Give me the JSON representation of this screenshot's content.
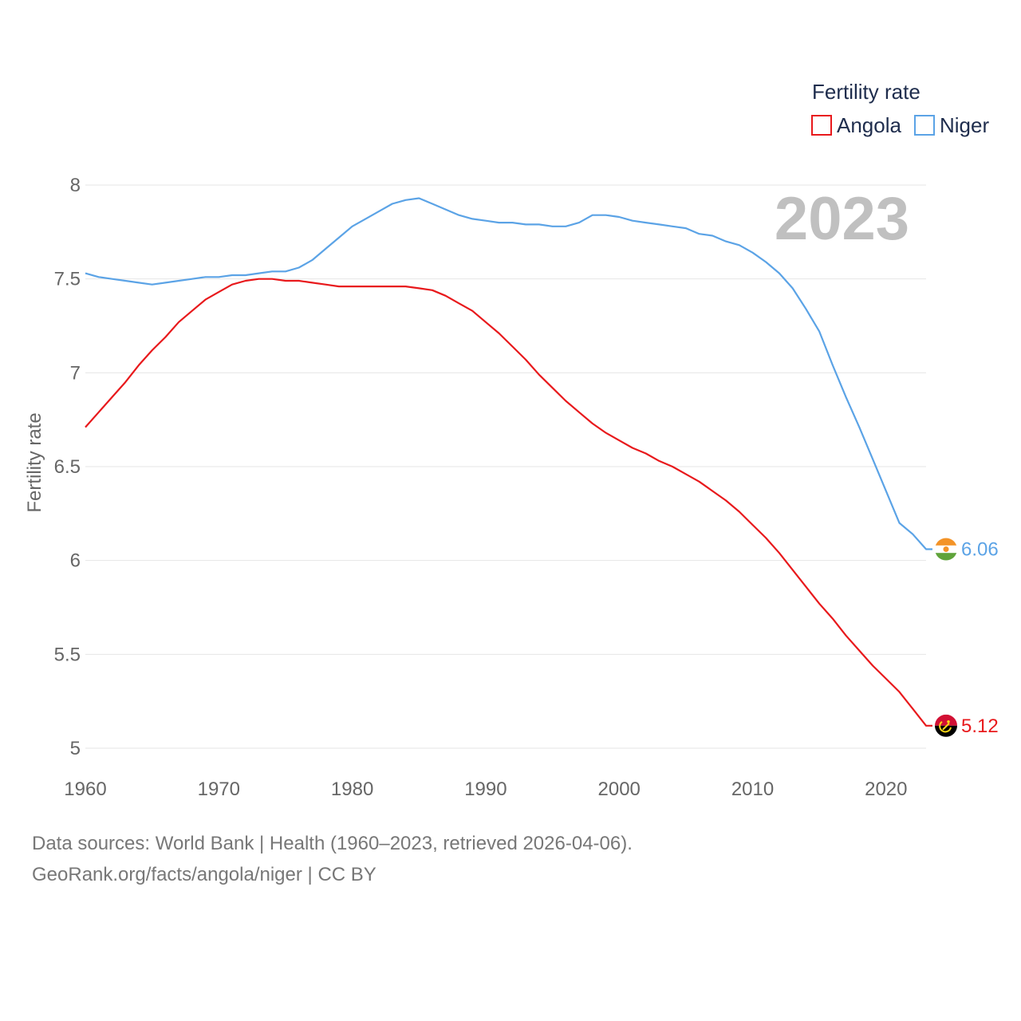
{
  "chart_data": {
    "type": "line",
    "title": "",
    "legend_title": "Fertility rate",
    "legend_position": "top-right",
    "ylabel": "Fertility rate",
    "xlabel": "",
    "xlim": [
      1960,
      2023
    ],
    "ylim": [
      5,
      8
    ],
    "x_ticks": [
      1960,
      1970,
      1980,
      1990,
      2000,
      2010,
      2020
    ],
    "y_ticks": [
      {
        "value": 5,
        "label": "5"
      },
      {
        "value": 5.5,
        "label": "5.5"
      },
      {
        "value": 6,
        "label": "6"
      },
      {
        "value": 6.5,
        "label": "6.5"
      },
      {
        "value": 7,
        "label": "7"
      },
      {
        "value": 7.5,
        "label": "7.5"
      },
      {
        "value": 8,
        "label": "8"
      }
    ],
    "current_year": "2023",
    "x": [
      1960,
      1961,
      1962,
      1963,
      1964,
      1965,
      1966,
      1967,
      1968,
      1969,
      1970,
      1971,
      1972,
      1973,
      1974,
      1975,
      1976,
      1977,
      1978,
      1979,
      1980,
      1981,
      1982,
      1983,
      1984,
      1985,
      1986,
      1987,
      1988,
      1989,
      1990,
      1991,
      1992,
      1993,
      1994,
      1995,
      1996,
      1997,
      1998,
      1999,
      2000,
      2001,
      2002,
      2003,
      2004,
      2005,
      2006,
      2007,
      2008,
      2009,
      2010,
      2011,
      2012,
      2013,
      2014,
      2015,
      2016,
      2017,
      2018,
      2019,
      2020,
      2021,
      2022,
      2023
    ],
    "series": [
      {
        "name": "Angola",
        "color": "#e8191c",
        "end_label": "5.12",
        "flag": "angola-flag",
        "values": [
          6.71,
          6.79,
          6.87,
          6.95,
          7.04,
          7.12,
          7.19,
          7.27,
          7.33,
          7.39,
          7.43,
          7.47,
          7.49,
          7.5,
          7.5,
          7.49,
          7.49,
          7.48,
          7.47,
          7.46,
          7.46,
          7.46,
          7.46,
          7.46,
          7.46,
          7.45,
          7.44,
          7.41,
          7.37,
          7.33,
          7.27,
          7.21,
          7.14,
          7.07,
          6.99,
          6.92,
          6.85,
          6.79,
          6.73,
          6.68,
          6.64,
          6.6,
          6.57,
          6.53,
          6.5,
          6.46,
          6.42,
          6.37,
          6.32,
          6.26,
          6.19,
          6.12,
          6.04,
          5.95,
          5.86,
          5.77,
          5.69,
          5.6,
          5.52,
          5.44,
          5.37,
          5.3,
          5.21,
          5.12
        ]
      },
      {
        "name": "Niger",
        "color": "#5ba3e6",
        "end_label": "6.06",
        "flag": "niger-flag",
        "values": [
          7.53,
          7.51,
          7.5,
          7.49,
          7.48,
          7.47,
          7.48,
          7.49,
          7.5,
          7.51,
          7.51,
          7.52,
          7.52,
          7.53,
          7.54,
          7.54,
          7.56,
          7.6,
          7.66,
          7.72,
          7.78,
          7.82,
          7.86,
          7.9,
          7.92,
          7.93,
          7.9,
          7.87,
          7.84,
          7.82,
          7.81,
          7.8,
          7.8,
          7.79,
          7.79,
          7.78,
          7.78,
          7.8,
          7.84,
          7.84,
          7.83,
          7.81,
          7.8,
          7.79,
          7.78,
          7.77,
          7.74,
          7.73,
          7.7,
          7.68,
          7.64,
          7.59,
          7.53,
          7.45,
          7.34,
          7.22,
          7.04,
          6.87,
          6.71,
          6.54,
          6.37,
          6.2,
          6.14,
          6.06
        ]
      }
    ]
  },
  "footer": {
    "source_line": "Data sources: World Bank | Health (1960–2023, retrieved 2026-04-06).",
    "credit_line": "GeoRank.org/facts/angola/niger | CC BY"
  }
}
